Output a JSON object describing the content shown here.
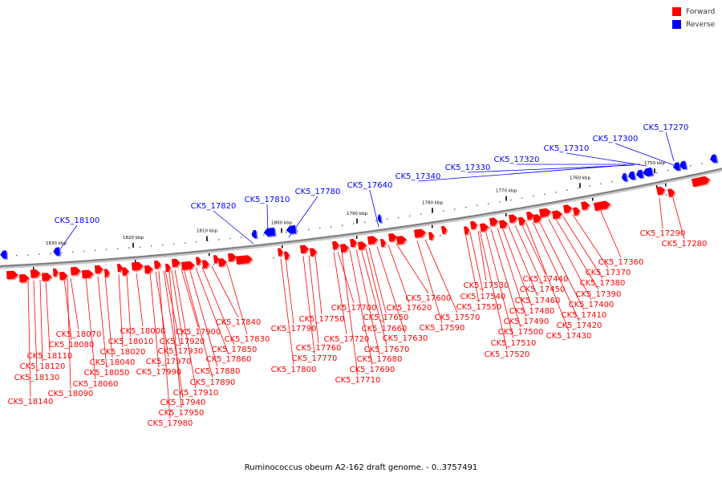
{
  "legend": {
    "forward": {
      "label": "Forward",
      "color": "#ff0000"
    },
    "reverse": {
      "label": "Reverse",
      "color": "#0000ff"
    }
  },
  "caption": "Ruminococcus obeum A2-162 draft genome. - 0..3757491",
  "backbone_color": "#808080",
  "scale_ticks": [
    "1830 kbp",
    "1820 kbp",
    "1810 kbp",
    "1800 kbp",
    "1790 kbp",
    "1780 kbp",
    "1770 kbp",
    "1760 kbp",
    "1750 kbp"
  ],
  "reverse_genes": [
    "CK5_18100",
    "CK5_17820",
    "CK5_17810",
    "CK5_17780",
    "CK5_17640",
    "CK5_17340",
    "CK5_17330",
    "CK5_17320",
    "CK5_17310",
    "CK5_17300",
    "CK5_17270"
  ],
  "forward_genes": [
    "CK5_18140",
    "CK5_18130",
    "CK5_18120",
    "CK5_18110",
    "CK5_18080",
    "CK5_18070",
    "CK5_18090",
    "CK5_18060",
    "CK5_18050",
    "CK5_18040",
    "CK5_18020",
    "CK5_18010",
    "CK5_18000",
    "CK5_17990",
    "CK5_17980",
    "CK5_17970",
    "CK5_17950",
    "CK5_17940",
    "CK5_17930",
    "CK5_17920",
    "CK5_17910",
    "CK5_17900",
    "CK5_17890",
    "CK5_17880",
    "CK5_17860",
    "CK5_17850",
    "CK5_17840",
    "CK5_17830",
    "CK5_17800",
    "CK5_17790",
    "CK5_17770",
    "CK5_17760",
    "CK5_17750",
    "CK5_17720",
    "CK5_17710",
    "CK5_17700",
    "CK5_17690",
    "CK5_17680",
    "CK5_17670",
    "CK5_17660",
    "CK5_17650",
    "CK5_17630",
    "CK5_17620",
    "CK5_17600",
    "CK5_17590",
    "CK5_17570",
    "CK5_17550",
    "CK5_17540",
    "CK5_17530",
    "CK5_17520",
    "CK5_17510",
    "CK5_17500",
    "CK5_17490",
    "CK5_17480",
    "CK5_17460",
    "CK5_17450",
    "CK5_17440",
    "CK5_17430",
    "CK5_17420",
    "CK5_17410",
    "CK5_17400",
    "CK5_17390",
    "CK5_17380",
    "CK5_17370",
    "CK5_17360",
    "CK5_17290",
    "CK5_17280"
  ]
}
